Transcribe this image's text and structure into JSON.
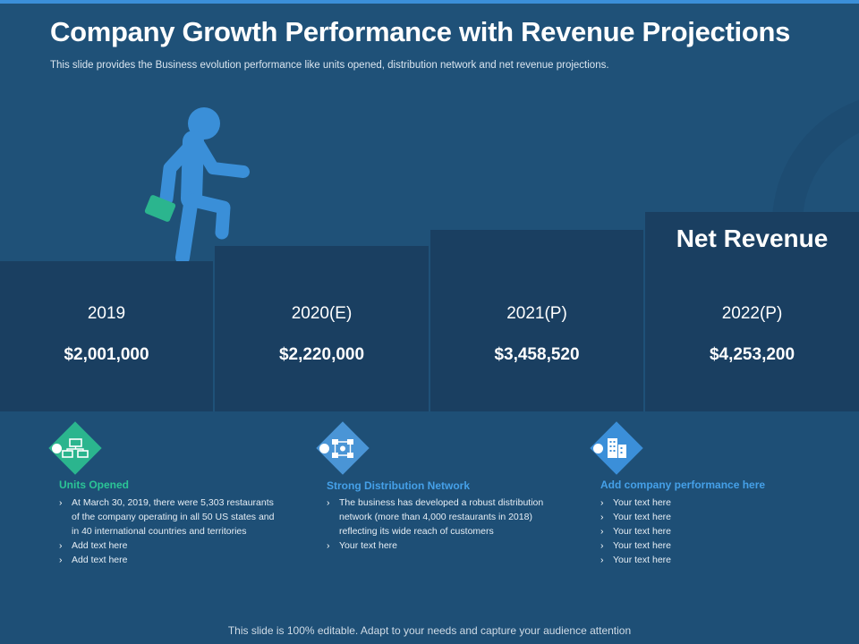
{
  "slide": {
    "title": "Company Growth Performance with Revenue Projections",
    "subtitle": "This slide provides  the Business evolution  performance  like units opened,  distribution network  and net revenue   projections.",
    "footer": "This slide is 100% editable. Adapt to your needs and capture your audience attention"
  },
  "steps": {
    "header": "Net Revenue",
    "items": [
      {
        "year": "2019",
        "value": "$2,001,000"
      },
      {
        "year": "2020(E)",
        "value": "$2,220,000"
      },
      {
        "year": "2021(P)",
        "value": "$3,458,520"
      },
      {
        "year": "2022(P)",
        "value": "$4,253,200"
      }
    ]
  },
  "panels": [
    {
      "title": "Units Opened",
      "icon": "stores-network-icon",
      "bullets": [
        "At March 30, 2019, there were 5,303 restaurants of the company operating in all 50 US states  and in 40 international  countries and territories",
        "Add text here",
        "Add text here"
      ]
    },
    {
      "title": "Strong Distribution Network",
      "icon": "distribution-network-icon",
      "bullets": [
        "The business  has developed a robust distribution network (more than 4,000 restaurants  in 2018) reflecting  its  wide reach of customers",
        "Your text here"
      ]
    },
    {
      "title": "Add company performance  here",
      "icon": "buildings-icon",
      "bullets": [
        "Your text here",
        "Your text here",
        "Your text here",
        "Your text here",
        "Your text here"
      ]
    }
  ],
  "colors": {
    "background": "#1f5178",
    "step_fill": "#1a3f61",
    "accent_blue": "#3b8fd9",
    "accent_teal": "#2bb58e",
    "panel_title_blue": "#45a0e8"
  }
}
